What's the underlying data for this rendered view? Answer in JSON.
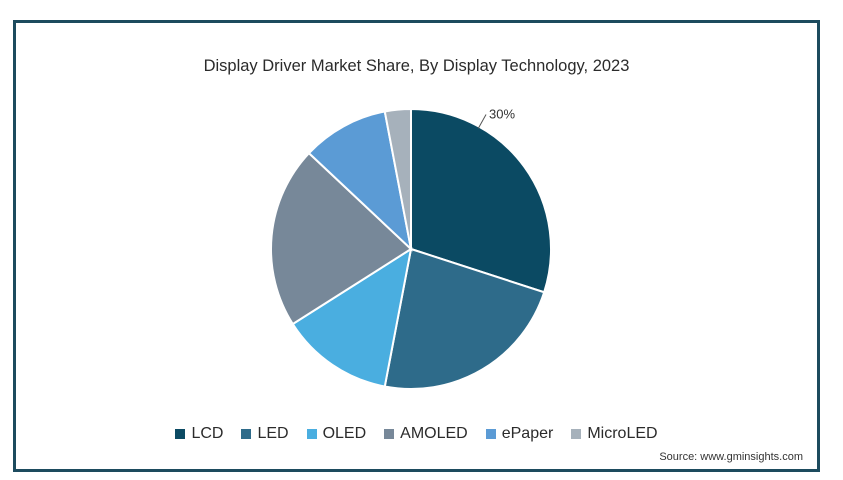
{
  "chart_data": {
    "type": "pie",
    "title": "Display Driver Market Share, By Display Technology, 2023",
    "categories": [
      "LCD",
      "LED",
      "OLED",
      "AMOLED",
      "ePaper",
      "MicroLED"
    ],
    "values": [
      30,
      23,
      13,
      21,
      10,
      3
    ],
    "colors": [
      "#0b4a63",
      "#2e6b8a",
      "#4aaee0",
      "#778899",
      "#5b9bd5",
      "#a6b1bb"
    ],
    "data_labels": [
      "30%",
      "",
      "",
      "",
      "",
      ""
    ],
    "legend_position": "bottom"
  },
  "source": "Source: www.gminsights.com"
}
